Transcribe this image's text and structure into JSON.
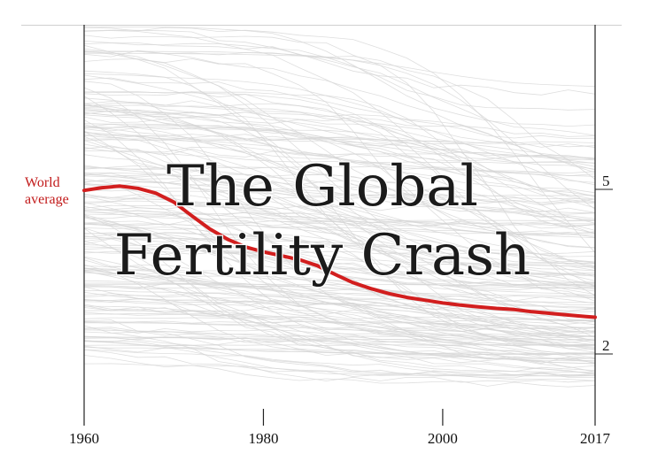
{
  "chart_data": {
    "type": "line",
    "title_lines": [
      "The Global",
      "Fertility Crash"
    ],
    "xlabel": "",
    "ylabel": "",
    "xlim": [
      1960,
      2017
    ],
    "ylim": [
      1,
      8
    ],
    "x_ticks": [
      1960,
      1980,
      2000,
      2017
    ],
    "x_tick_labels": [
      "1960",
      "1980",
      "2000",
      "2017"
    ],
    "y_ticks": [
      5,
      2
    ],
    "y_tick_labels": [
      "5",
      "2"
    ],
    "grid": false,
    "annotation": "World average",
    "annotation_lines": [
      "World",
      "average"
    ],
    "highlight_color": "#d21e1e",
    "background_series_color": "#d6d6d6",
    "series": [
      {
        "x": [
          1960,
          1962,
          1964,
          1966,
          1968,
          1970,
          1972,
          1974,
          1976,
          1978,
          1980,
          1982,
          1984,
          1986,
          1988,
          1990,
          1992,
          1994,
          1996,
          1998,
          2000,
          2002,
          2004,
          2006,
          2008,
          2010,
          2012,
          2014,
          2016,
          2017
        ],
        "y": [
          4.98,
          5.03,
          5.06,
          5.02,
          4.93,
          4.77,
          4.52,
          4.28,
          4.09,
          3.95,
          3.86,
          3.79,
          3.72,
          3.61,
          3.45,
          3.3,
          3.19,
          3.1,
          3.03,
          2.98,
          2.93,
          2.89,
          2.86,
          2.83,
          2.81,
          2.77,
          2.74,
          2.71,
          2.68,
          2.67
        ]
      }
    ]
  }
}
